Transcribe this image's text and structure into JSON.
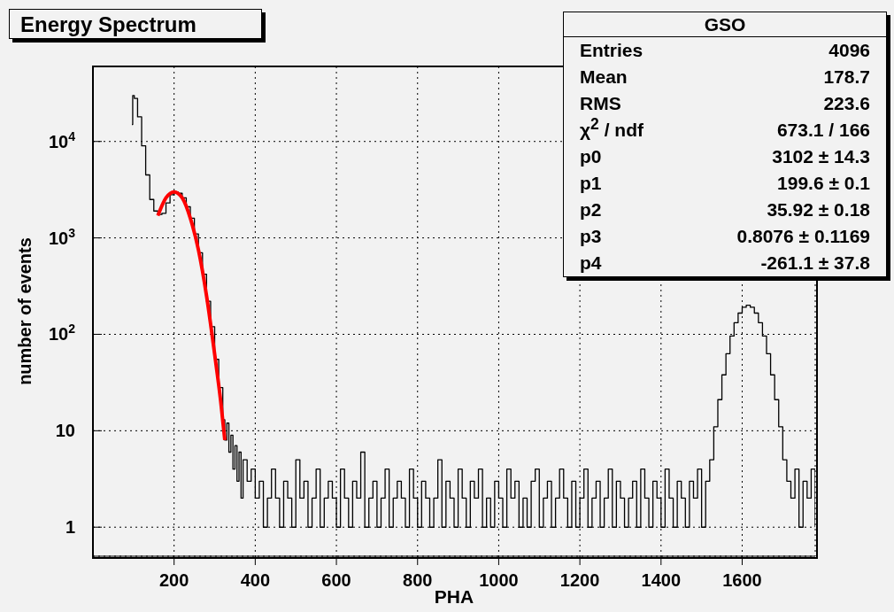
{
  "chart_data": {
    "type": "step",
    "title": "Energy Spectrum",
    "xlabel": "PHA",
    "ylabel": "number of events",
    "log": "y",
    "grid": true,
    "xlim": [
      0,
      1780
    ],
    "xticks": [
      200,
      400,
      600,
      800,
      1000,
      1200,
      1400,
      1600
    ],
    "ylim": [
      0.5,
      60000
    ],
    "yticks": [
      1,
      10,
      {
        "value": 100,
        "label": "10$^{2}$"
      },
      {
        "value": 1000,
        "label": "10$^{3}$"
      },
      {
        "value": 10000,
        "label": "10$^{4}$"
      }
    ],
    "annotations": [
      "GSO",
      "Entries",
      "4096",
      "Mean",
      "178.7",
      "RMS",
      "223.6",
      "χ$^{2}$ / ndf",
      "673.1 / 166",
      "p0",
      "3102 ± 14.3",
      "p1",
      "199.6 ± 0.1",
      "p2",
      "35.92 ± 0.18",
      "p3",
      "0.8076 ± 0.1169",
      "p4",
      "-261.1 ± 37.8"
    ],
    "series": [
      {
        "type": "step",
        "color": "#000000",
        "x": [
          96,
          98,
          102,
          110,
          120,
          130,
          140,
          150,
          160,
          170,
          180,
          190,
          200,
          210,
          220,
          230,
          240,
          250,
          260,
          270,
          280,
          290,
          300,
          310,
          320,
          325,
          330,
          335,
          340,
          345,
          350,
          355,
          360,
          365,
          370,
          380,
          390,
          400,
          410,
          420,
          430,
          440,
          450,
          460,
          470,
          480,
          490,
          500,
          510,
          520,
          530,
          540,
          550,
          560,
          570,
          580,
          590,
          600,
          610,
          620,
          630,
          640,
          650,
          660,
          670,
          680,
          690,
          700,
          710,
          720,
          730,
          740,
          750,
          760,
          770,
          780,
          790,
          800,
          810,
          820,
          830,
          840,
          850,
          860,
          870,
          880,
          890,
          900,
          910,
          920,
          930,
          940,
          950,
          960,
          970,
          980,
          990,
          1000,
          1010,
          1020,
          1030,
          1040,
          1050,
          1060,
          1070,
          1080,
          1090,
          1100,
          1110,
          1120,
          1130,
          1140,
          1150,
          1160,
          1170,
          1180,
          1190,
          1200,
          1210,
          1220,
          1230,
          1240,
          1250,
          1260,
          1270,
          1280,
          1290,
          1300,
          1310,
          1320,
          1330,
          1340,
          1350,
          1360,
          1370,
          1380,
          1390,
          1400,
          1410,
          1420,
          1430,
          1440,
          1450,
          1460,
          1470,
          1480,
          1490,
          1500,
          1510,
          1520,
          1530,
          1540,
          1550,
          1560,
          1570,
          1580,
          1590,
          1600,
          1610,
          1620,
          1630,
          1640,
          1650,
          1660,
          1670,
          1680,
          1690,
          1700,
          1710,
          1720,
          1730,
          1740,
          1750,
          1760,
          1770,
          1780
        ],
        "values": [
          15000,
          30000,
          28000,
          18000,
          9000,
          4500,
          2500,
          1900,
          1750,
          1800,
          2300,
          2800,
          3000,
          2900,
          2600,
          2100,
          1600,
          1100,
          700,
          420,
          220,
          120,
          55,
          28,
          13,
          8,
          12,
          6,
          9,
          4,
          7,
          3,
          6,
          2,
          5,
          3,
          4,
          2,
          3,
          1,
          2,
          4,
          2,
          1,
          3,
          2,
          1,
          5,
          2,
          3,
          1,
          2,
          4,
          1,
          2,
          3,
          2,
          1,
          4,
          2,
          1,
          3,
          2,
          6,
          1,
          2,
          3,
          1,
          2,
          4,
          1,
          2,
          3,
          2,
          1,
          4,
          2,
          1,
          3,
          2,
          1,
          2,
          5,
          1,
          3,
          2,
          1,
          4,
          2,
          1,
          3,
          2,
          4,
          1,
          2,
          1,
          3,
          2,
          1,
          4,
          2,
          3,
          1,
          2,
          1,
          3,
          4,
          1,
          2,
          3,
          1,
          2,
          4,
          2,
          1,
          3,
          1,
          2,
          4,
          1,
          2,
          3,
          1,
          2,
          4,
          1,
          3,
          2,
          1,
          2,
          3,
          1,
          4,
          2,
          1,
          3,
          2,
          1,
          4,
          2,
          1,
          3,
          2,
          1,
          3,
          2,
          4,
          1,
          3,
          5,
          11,
          21,
          38,
          63,
          96,
          132,
          166,
          191,
          200,
          191,
          166,
          132,
          96,
          63,
          38,
          21,
          11,
          5,
          3,
          2,
          4,
          1,
          3,
          2,
          4,
          1
        ]
      },
      {
        "type": "line",
        "color": "#ff0000",
        "x": [
          160,
          180,
          200,
          220,
          240,
          260,
          280,
          300,
          315,
          325
        ],
        "values": [
          1700,
          2600,
          3000,
          2600,
          1600,
          750,
          250,
          62,
          20,
          8
        ]
      }
    ]
  }
}
